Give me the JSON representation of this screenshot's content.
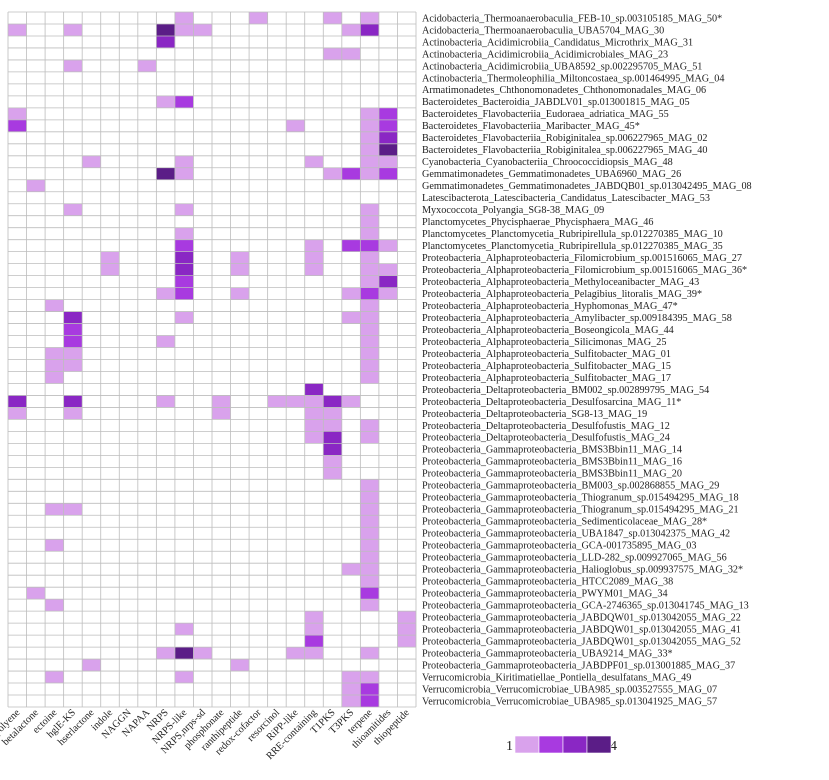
{
  "chart_data": {
    "type": "heatmap",
    "columns": [
      "arylpolyene",
      "betalactone",
      "ectoine",
      "hglE-KS",
      "hserlactone",
      "indole",
      "NAGGN",
      "NAPAA",
      "NRPS",
      "NRPS-like",
      "NRPS,nrps-sd",
      "phosphonate",
      "ranthipeptide",
      "redox-cofactor",
      "resorcinol",
      "RiPP-like",
      "RRE-containing",
      "T1PKS",
      "T3PKS",
      "terpene",
      "thioamitides",
      "thiopeptide"
    ],
    "rows": [
      "Acidobacteria_Thermoanaerobaculia_FEB-10_sp.003105185_MAG_50*",
      "Acidobacteria_Thermoanaerobaculia_UBA5704_MAG_30",
      "Actinobacteria_Acidimicrobiia_Candidatus_Microthrix_MAG_31",
      "Actinobacteria_Acidimicrobiia_Acidimicrobiales_MAG_23",
      "Actinobacteria_Acidimicrobiia_UBA8592_sp.002295705_MAG_51",
      "Actinobacteria_Thermoleophilia_Miltoncostaea_sp.001464995_MAG_04",
      "Armatimonadetes_Chthonomonadetes_Chthonomonadales_MAG_06",
      "Bacteroidetes_Bacteroidia_JABDLV01_sp.013001815_MAG_05",
      "Bacteroidetes_Flavobacteriia_Eudoraea_adriatica_MAG_55",
      "Bacteroidetes_Flavobacteriia_Maribacter_MAG_45*",
      "Bacteroidetes_Flavobacteriia_Robiginitalea_sp.006227965_MAG_02",
      "Bacteroidetes_Flavobacteriia_Robiginitalea_sp.006227965_MAG_40",
      "Cyanobacteria_Cyanobacteriia_Chroococcidiopsis_MAG_48",
      "Gemmatimonadetes_Gemmatimonadetes_UBA6960_MAG_26",
      "Gemmatimonadetes_Gemmatimonadetes_JABDQB01_sp.013042495_MAG_08",
      "Latescibacterota_Latescibacteria_Candidatus_Latescibacter_MAG_53",
      "Myxococcota_Polyangia_SG8-38_MAG_09",
      "Planctomycetes_Phycisphaerae_Phycisphaera_MAG_46",
      "Planctomycetes_Planctomycetia_Rubripirellula_sp.012270385_MAG_10",
      "Planctomycetes_Planctomycetia_Rubripirellula_sp.012270385_MAG_35",
      "Proteobacteria_Alphaproteobacteria_Filomicrobium_sp.001516065_MAG_27",
      "Proteobacteria_Alphaproteobacteria_Filomicrobium_sp.001516065_MAG_36*",
      "Proteobacteria_Alphaproteobacteria_Methyloceanibacter_MAG_43",
      "Proteobacteria_Alphaproteobacteria_Pelagibius_litoralis_MAG_39*",
      "Proteobacteria_Alphaproteobacteria_Hyphomonas_MAG_47*",
      "Proteobacteria_Alphaproteobacteria_Amylibacter_sp.009184395_MAG_58",
      "Proteobacteria_Alphaproteobacteria_Boseongicola_MAG_44",
      "Proteobacteria_Alphaproteobacteria_Silicimonas_MAG_25",
      "Proteobacteria_Alphaproteobacteria_Sulfitobacter_MAG_01",
      "Proteobacteria_Alphaproteobacteria_Sulfitobacter_MAG_15",
      "Proteobacteria_Alphaproteobacteria_Sulfitobacter_MAG_17",
      "Proteobacteria_Deltaproteobacteria_BM002_sp.002899795_MAG_54",
      "Proteobacteria_Deltaproteobacteria_Desulfosarcina_MAG_11*",
      "Proteobacteria_Deltaproteobacteria_SG8-13_MAG_19",
      "Proteobacteria_Deltaproteobacteria_Desulfofustis_MAG_12",
      "Proteobacteria_Deltaproteobacteria_Desulfofustis_MAG_24",
      "Proteobacteria_Gammaproteobacteria_BMS3Bbin11_MAG_14",
      "Proteobacteria_Gammaproteobacteria_BMS3Bbin11_MAG_16",
      "Proteobacteria_Gammaproteobacteria_BMS3Bbin11_MAG_20",
      "Proteobacteria_Gammaproteobacteria_BM003_sp.002868855_MAG_29",
      "Proteobacteria_Gammaproteobacteria_Thiogranum_sp.015494295_MAG_18",
      "Proteobacteria_Gammaproteobacteria_Thiogranum_sp.015494295_MAG_21",
      "Proteobacteria_Gammaproteobacteria_Sedimenticolaceae_MAG_28*",
      "Proteobacteria_Gammaproteobacteria_UBA1847_sp.013042375_MAG_42",
      "Proteobacteria_Gammaproteobacteria_GCA-001735895_MAG_03",
      "Proteobacteria_Gammaproteobacteria_LLD-282_sp.009927065_MAG_56",
      "Proteobacteria_Gammaproteobacteria_Halioglobus_sp.009937575_MAG_32*",
      "Proteobacteria_Gammaproteobacteria_HTCC2089_MAG_38",
      "Proteobacteria_Gammaproteobacteria_PWYM01_MAG_34",
      "Proteobacteria_Gammaproteobacteria_GCA-2746365_sp.013041745_MAG_13",
      "Proteobacteria_Gammaproteobacteria_JABDQW01_sp.013042055_MAG_22",
      "Proteobacteria_Gammaproteobacteria_JABDQW01_sp.013042055_MAG_41",
      "Proteobacteria_Gammaproteobacteria_JABDQW01_sp.013042055_MAG_52",
      "Proteobacteria_Gammaproteobacteria_UBA9214_MAG_33*",
      "Proteobacteria_Gammaproteobacteria_JABDPF01_sp.013001885_MAG_37",
      "Verrucomicrobia_Kiritimatiellae_Pontiella_desulfatans_MAG_49",
      "Verrucomicrobia_Verrucomicrobiae_UBA985_sp.003527555_MAG_07",
      "Verrucomicrobia_Verrucomicrobiae_UBA985_sp.013041925_MAG_57"
    ],
    "values": [
      [
        0,
        0,
        0,
        0,
        0,
        0,
        0,
        0,
        0,
        1,
        0,
        0,
        0,
        1,
        0,
        0,
        0,
        1,
        0,
        1,
        0,
        0
      ],
      [
        1,
        0,
        0,
        1,
        0,
        0,
        0,
        0,
        4,
        1,
        1,
        0,
        0,
        0,
        0,
        0,
        0,
        0,
        1,
        3,
        0,
        0
      ],
      [
        0,
        0,
        0,
        0,
        0,
        0,
        0,
        0,
        3,
        0,
        0,
        0,
        0,
        0,
        0,
        0,
        0,
        0,
        0,
        0,
        0,
        0
      ],
      [
        0,
        0,
        0,
        0,
        0,
        0,
        0,
        0,
        0,
        0,
        0,
        0,
        0,
        0,
        0,
        0,
        0,
        1,
        1,
        0,
        0,
        0
      ],
      [
        0,
        0,
        0,
        1,
        0,
        0,
        0,
        1,
        0,
        0,
        0,
        0,
        0,
        0,
        0,
        0,
        0,
        0,
        0,
        0,
        0,
        0
      ],
      [
        0,
        0,
        0,
        0,
        0,
        0,
        0,
        0,
        0,
        0,
        0,
        0,
        0,
        0,
        0,
        0,
        0,
        0,
        0,
        0,
        0,
        0
      ],
      [
        0,
        0,
        0,
        0,
        0,
        0,
        0,
        0,
        0,
        0,
        0,
        0,
        0,
        0,
        0,
        0,
        0,
        0,
        0,
        0,
        0,
        0
      ],
      [
        0,
        0,
        0,
        0,
        0,
        0,
        0,
        0,
        1,
        2,
        0,
        0,
        0,
        0,
        0,
        0,
        0,
        0,
        0,
        0,
        0,
        0
      ],
      [
        1,
        0,
        0,
        0,
        0,
        0,
        0,
        0,
        0,
        0,
        0,
        0,
        0,
        0,
        0,
        0,
        0,
        0,
        0,
        1,
        2,
        0
      ],
      [
        2,
        0,
        0,
        0,
        0,
        0,
        0,
        0,
        0,
        0,
        0,
        0,
        0,
        0,
        0,
        1,
        0,
        0,
        0,
        1,
        2,
        0
      ],
      [
        0,
        0,
        0,
        0,
        0,
        0,
        0,
        0,
        0,
        0,
        0,
        0,
        0,
        0,
        0,
        0,
        0,
        0,
        0,
        1,
        3,
        0
      ],
      [
        0,
        0,
        0,
        0,
        0,
        0,
        0,
        0,
        0,
        0,
        0,
        0,
        0,
        0,
        0,
        0,
        0,
        0,
        0,
        1,
        4,
        0
      ],
      [
        0,
        0,
        0,
        0,
        1,
        0,
        0,
        0,
        0,
        1,
        0,
        0,
        0,
        0,
        0,
        0,
        1,
        0,
        0,
        1,
        1,
        0
      ],
      [
        0,
        0,
        0,
        0,
        0,
        0,
        0,
        0,
        4,
        1,
        0,
        0,
        0,
        0,
        0,
        0,
        0,
        1,
        2,
        1,
        2,
        0
      ],
      [
        0,
        1,
        0,
        0,
        0,
        0,
        0,
        0,
        0,
        0,
        0,
        0,
        0,
        0,
        0,
        0,
        0,
        0,
        0,
        0,
        0,
        0
      ],
      [
        0,
        0,
        0,
        0,
        0,
        0,
        0,
        0,
        0,
        0,
        0,
        0,
        0,
        0,
        0,
        0,
        0,
        0,
        0,
        0,
        0,
        0
      ],
      [
        0,
        0,
        0,
        1,
        0,
        0,
        0,
        0,
        0,
        1,
        0,
        0,
        0,
        0,
        0,
        0,
        0,
        0,
        0,
        1,
        0,
        0
      ],
      [
        0,
        0,
        0,
        0,
        0,
        0,
        0,
        0,
        0,
        0,
        0,
        0,
        0,
        0,
        0,
        0,
        0,
        0,
        0,
        1,
        0,
        0
      ],
      [
        0,
        0,
        0,
        0,
        0,
        0,
        0,
        0,
        0,
        1,
        0,
        0,
        0,
        0,
        0,
        0,
        0,
        0,
        0,
        1,
        0,
        0
      ],
      [
        0,
        0,
        0,
        0,
        0,
        0,
        0,
        0,
        0,
        2,
        0,
        0,
        0,
        0,
        0,
        0,
        1,
        0,
        2,
        2,
        1,
        0
      ],
      [
        0,
        0,
        0,
        0,
        0,
        1,
        0,
        0,
        0,
        3,
        0,
        0,
        1,
        0,
        0,
        0,
        1,
        0,
        0,
        1,
        0,
        0
      ],
      [
        0,
        0,
        0,
        0,
        0,
        1,
        0,
        0,
        0,
        3,
        0,
        0,
        1,
        0,
        0,
        0,
        1,
        0,
        0,
        1,
        1,
        0
      ],
      [
        0,
        0,
        0,
        0,
        0,
        0,
        0,
        0,
        0,
        2,
        0,
        0,
        0,
        0,
        0,
        0,
        0,
        0,
        0,
        1,
        3,
        0
      ],
      [
        0,
        0,
        0,
        0,
        0,
        0,
        0,
        0,
        1,
        2,
        0,
        0,
        1,
        0,
        0,
        0,
        0,
        0,
        1,
        2,
        1,
        0
      ],
      [
        0,
        0,
        1,
        0,
        0,
        0,
        0,
        0,
        0,
        0,
        0,
        0,
        0,
        0,
        0,
        0,
        0,
        0,
        0,
        1,
        0,
        0
      ],
      [
        0,
        0,
        0,
        3,
        0,
        0,
        0,
        0,
        0,
        1,
        0,
        0,
        0,
        0,
        0,
        0,
        0,
        0,
        1,
        1,
        0,
        0
      ],
      [
        0,
        0,
        0,
        2,
        0,
        0,
        0,
        0,
        0,
        0,
        0,
        0,
        0,
        0,
        0,
        0,
        0,
        0,
        0,
        1,
        0,
        0
      ],
      [
        0,
        0,
        0,
        2,
        0,
        0,
        0,
        0,
        1,
        0,
        0,
        0,
        0,
        0,
        0,
        0,
        0,
        0,
        0,
        1,
        0,
        0
      ],
      [
        0,
        0,
        1,
        1,
        0,
        0,
        0,
        0,
        0,
        0,
        0,
        0,
        0,
        0,
        0,
        0,
        0,
        0,
        0,
        1,
        0,
        0
      ],
      [
        0,
        0,
        1,
        1,
        0,
        0,
        0,
        0,
        0,
        0,
        0,
        0,
        0,
        0,
        0,
        0,
        0,
        0,
        0,
        1,
        0,
        0
      ],
      [
        0,
        0,
        1,
        0,
        0,
        0,
        0,
        0,
        0,
        0,
        0,
        0,
        0,
        0,
        0,
        0,
        0,
        0,
        0,
        1,
        0,
        0
      ],
      [
        0,
        0,
        0,
        0,
        0,
        0,
        0,
        0,
        0,
        0,
        0,
        0,
        0,
        0,
        0,
        0,
        3,
        0,
        0,
        0,
        0,
        0
      ],
      [
        3,
        0,
        0,
        3,
        0,
        0,
        0,
        0,
        1,
        0,
        0,
        1,
        0,
        0,
        1,
        1,
        1,
        3,
        1,
        0,
        0,
        0
      ],
      [
        1,
        0,
        0,
        1,
        0,
        0,
        0,
        0,
        0,
        0,
        0,
        1,
        0,
        0,
        0,
        0,
        1,
        1,
        0,
        0,
        0,
        0
      ],
      [
        0,
        0,
        0,
        0,
        0,
        0,
        0,
        0,
        0,
        0,
        0,
        0,
        0,
        0,
        0,
        0,
        1,
        1,
        0,
        1,
        0,
        0
      ],
      [
        0,
        0,
        0,
        0,
        0,
        0,
        0,
        0,
        0,
        0,
        0,
        0,
        0,
        0,
        0,
        0,
        1,
        3,
        0,
        1,
        0,
        0
      ],
      [
        0,
        0,
        0,
        0,
        0,
        0,
        0,
        0,
        0,
        0,
        0,
        0,
        0,
        0,
        0,
        0,
        0,
        3,
        0,
        0,
        0,
        0
      ],
      [
        0,
        0,
        0,
        0,
        0,
        0,
        0,
        0,
        0,
        0,
        0,
        0,
        0,
        0,
        0,
        0,
        0,
        1,
        0,
        0,
        0,
        0
      ],
      [
        0,
        0,
        0,
        0,
        0,
        0,
        0,
        0,
        0,
        0,
        0,
        0,
        0,
        0,
        0,
        0,
        0,
        1,
        0,
        0,
        0,
        0
      ],
      [
        0,
        0,
        0,
        0,
        0,
        0,
        0,
        0,
        0,
        0,
        0,
        0,
        0,
        0,
        0,
        0,
        0,
        0,
        0,
        1,
        0,
        0
      ],
      [
        0,
        0,
        0,
        0,
        0,
        0,
        0,
        0,
        0,
        0,
        0,
        0,
        0,
        0,
        0,
        0,
        0,
        0,
        0,
        1,
        0,
        0
      ],
      [
        0,
        0,
        1,
        1,
        0,
        0,
        0,
        0,
        0,
        0,
        0,
        0,
        0,
        0,
        0,
        0,
        0,
        0,
        0,
        1,
        0,
        0
      ],
      [
        0,
        0,
        0,
        0,
        0,
        0,
        0,
        0,
        0,
        0,
        0,
        0,
        0,
        0,
        0,
        0,
        0,
        0,
        0,
        1,
        0,
        0
      ],
      [
        0,
        0,
        0,
        0,
        0,
        0,
        0,
        0,
        0,
        0,
        0,
        0,
        0,
        0,
        0,
        0,
        0,
        0,
        0,
        1,
        0,
        0
      ],
      [
        0,
        0,
        1,
        0,
        0,
        0,
        0,
        0,
        0,
        0,
        0,
        0,
        0,
        0,
        0,
        0,
        0,
        0,
        0,
        1,
        0,
        0
      ],
      [
        0,
        0,
        0,
        0,
        0,
        0,
        0,
        0,
        0,
        0,
        0,
        0,
        0,
        0,
        0,
        0,
        0,
        0,
        0,
        1,
        0,
        0
      ],
      [
        0,
        0,
        0,
        0,
        0,
        0,
        0,
        0,
        0,
        0,
        0,
        0,
        0,
        0,
        0,
        0,
        0,
        0,
        1,
        1,
        0,
        0
      ],
      [
        0,
        0,
        0,
        0,
        0,
        0,
        0,
        0,
        0,
        0,
        0,
        0,
        0,
        0,
        0,
        0,
        0,
        0,
        0,
        1,
        0,
        0
      ],
      [
        0,
        1,
        0,
        0,
        0,
        0,
        0,
        0,
        0,
        0,
        0,
        0,
        0,
        0,
        0,
        0,
        0,
        0,
        0,
        2,
        0,
        0
      ],
      [
        0,
        0,
        1,
        0,
        0,
        0,
        0,
        0,
        0,
        0,
        0,
        0,
        0,
        0,
        0,
        0,
        0,
        0,
        0,
        1,
        0,
        0
      ],
      [
        0,
        0,
        0,
        0,
        0,
        0,
        0,
        0,
        0,
        0,
        0,
        0,
        0,
        0,
        0,
        0,
        1,
        0,
        0,
        0,
        0,
        1
      ],
      [
        0,
        0,
        0,
        0,
        0,
        0,
        0,
        0,
        0,
        1,
        0,
        0,
        0,
        0,
        0,
        0,
        1,
        0,
        0,
        0,
        0,
        1
      ],
      [
        0,
        0,
        0,
        0,
        0,
        0,
        0,
        0,
        0,
        0,
        0,
        0,
        0,
        0,
        0,
        0,
        2,
        0,
        0,
        0,
        0,
        1
      ],
      [
        0,
        0,
        0,
        0,
        0,
        0,
        0,
        0,
        1,
        4,
        1,
        0,
        0,
        0,
        0,
        1,
        1,
        0,
        0,
        1,
        0,
        0
      ],
      [
        0,
        0,
        0,
        0,
        1,
        0,
        0,
        0,
        0,
        0,
        0,
        0,
        1,
        0,
        0,
        0,
        0,
        0,
        0,
        0,
        0,
        0
      ],
      [
        0,
        0,
        1,
        0,
        0,
        0,
        0,
        0,
        0,
        1,
        0,
        0,
        0,
        0,
        0,
        0,
        0,
        0,
        1,
        1,
        0,
        0
      ],
      [
        0,
        0,
        0,
        0,
        0,
        0,
        0,
        0,
        0,
        0,
        0,
        0,
        0,
        0,
        0,
        0,
        0,
        0,
        1,
        2,
        0,
        0
      ],
      [
        0,
        0,
        0,
        0,
        0,
        0,
        0,
        0,
        0,
        0,
        0,
        0,
        0,
        0,
        0,
        0,
        0,
        0,
        1,
        2,
        0,
        0
      ]
    ],
    "color_scale": {
      "min_label": "1",
      "max_label": "4",
      "colors": [
        "#ffffff",
        "#d9a2ec",
        "#a83ae0",
        "#8a27c4",
        "#5b1d87"
      ],
      "legend_colors": [
        "#d9a2ec",
        "#a83ae0",
        "#8a27c4",
        "#5b1d87"
      ]
    },
    "grid": true,
    "legend_placement": "bottom-right"
  }
}
